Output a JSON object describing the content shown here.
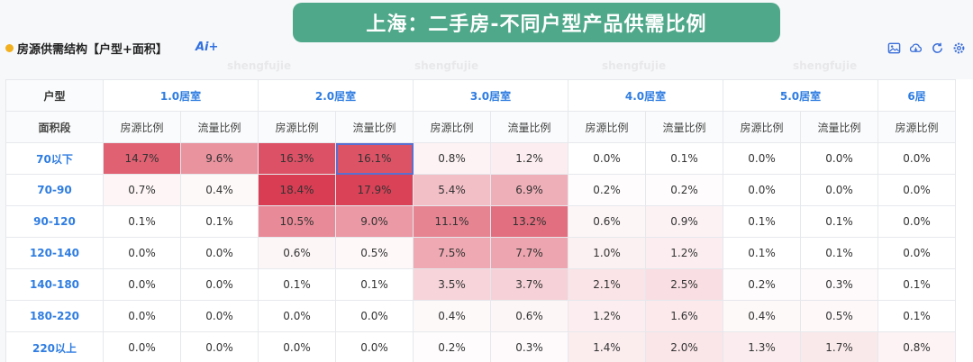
{
  "banner": {
    "title": "上海：二手房-不同户型产品供需比例"
  },
  "panel": {
    "title": "房源供需结构【户型+面积】",
    "ai_badge": "Ai+"
  },
  "toolbar": [
    {
      "name": "save-image-icon"
    },
    {
      "name": "cloud-download-icon"
    },
    {
      "name": "refresh-icon"
    },
    {
      "name": "settings-icon"
    }
  ],
  "watermark": "shengfujie",
  "table": {
    "type_header": "户型",
    "area_header": "面积段",
    "types": [
      "1.0居室",
      "2.0居室",
      "3.0居室",
      "4.0居室",
      "5.0居室",
      "6居"
    ],
    "sub_headers": [
      "房源比例",
      "流量比例",
      "房源比例",
      "流量比例",
      "房源比例",
      "流量比例",
      "房源比例",
      "流量比例",
      "房源比例",
      "流量比例",
      "房源比例"
    ],
    "rows": [
      {
        "label": "70以下",
        "values": [
          "14.7%",
          "9.6%",
          "16.3%",
          "16.1%",
          "0.8%",
          "1.2%",
          "0.0%",
          "0.1%",
          "0.0%",
          "0.0%",
          "0.0%"
        ]
      },
      {
        "label": "70-90",
        "values": [
          "0.7%",
          "0.4%",
          "18.4%",
          "17.9%",
          "5.4%",
          "6.9%",
          "0.2%",
          "0.2%",
          "0.0%",
          "0.0%",
          "0.0%"
        ]
      },
      {
        "label": "90-120",
        "values": [
          "0.1%",
          "0.1%",
          "10.5%",
          "9.0%",
          "11.1%",
          "13.2%",
          "0.6%",
          "0.9%",
          "0.1%",
          "0.1%",
          "0.0%"
        ]
      },
      {
        "label": "120-140",
        "values": [
          "0.0%",
          "0.0%",
          "0.6%",
          "0.5%",
          "7.5%",
          "7.7%",
          "1.0%",
          "1.2%",
          "0.1%",
          "0.1%",
          "0.0%"
        ]
      },
      {
        "label": "140-180",
        "values": [
          "0.0%",
          "0.0%",
          "0.1%",
          "0.1%",
          "3.5%",
          "3.7%",
          "2.1%",
          "2.5%",
          "0.2%",
          "0.3%",
          "0.1%"
        ]
      },
      {
        "label": "180-220",
        "values": [
          "0.0%",
          "0.0%",
          "0.0%",
          "0.0%",
          "0.4%",
          "0.6%",
          "1.2%",
          "1.6%",
          "0.4%",
          "0.5%",
          "0.1%"
        ]
      },
      {
        "label": "220以上",
        "values": [
          "0.0%",
          "0.0%",
          "0.0%",
          "0.0%",
          "0.2%",
          "0.3%",
          "1.4%",
          "2.0%",
          "1.3%",
          "1.7%",
          "0.8%"
        ]
      }
    ],
    "selected_cell": {
      "row": 0,
      "col": 3
    },
    "heat_color": "#d6334a"
  }
}
